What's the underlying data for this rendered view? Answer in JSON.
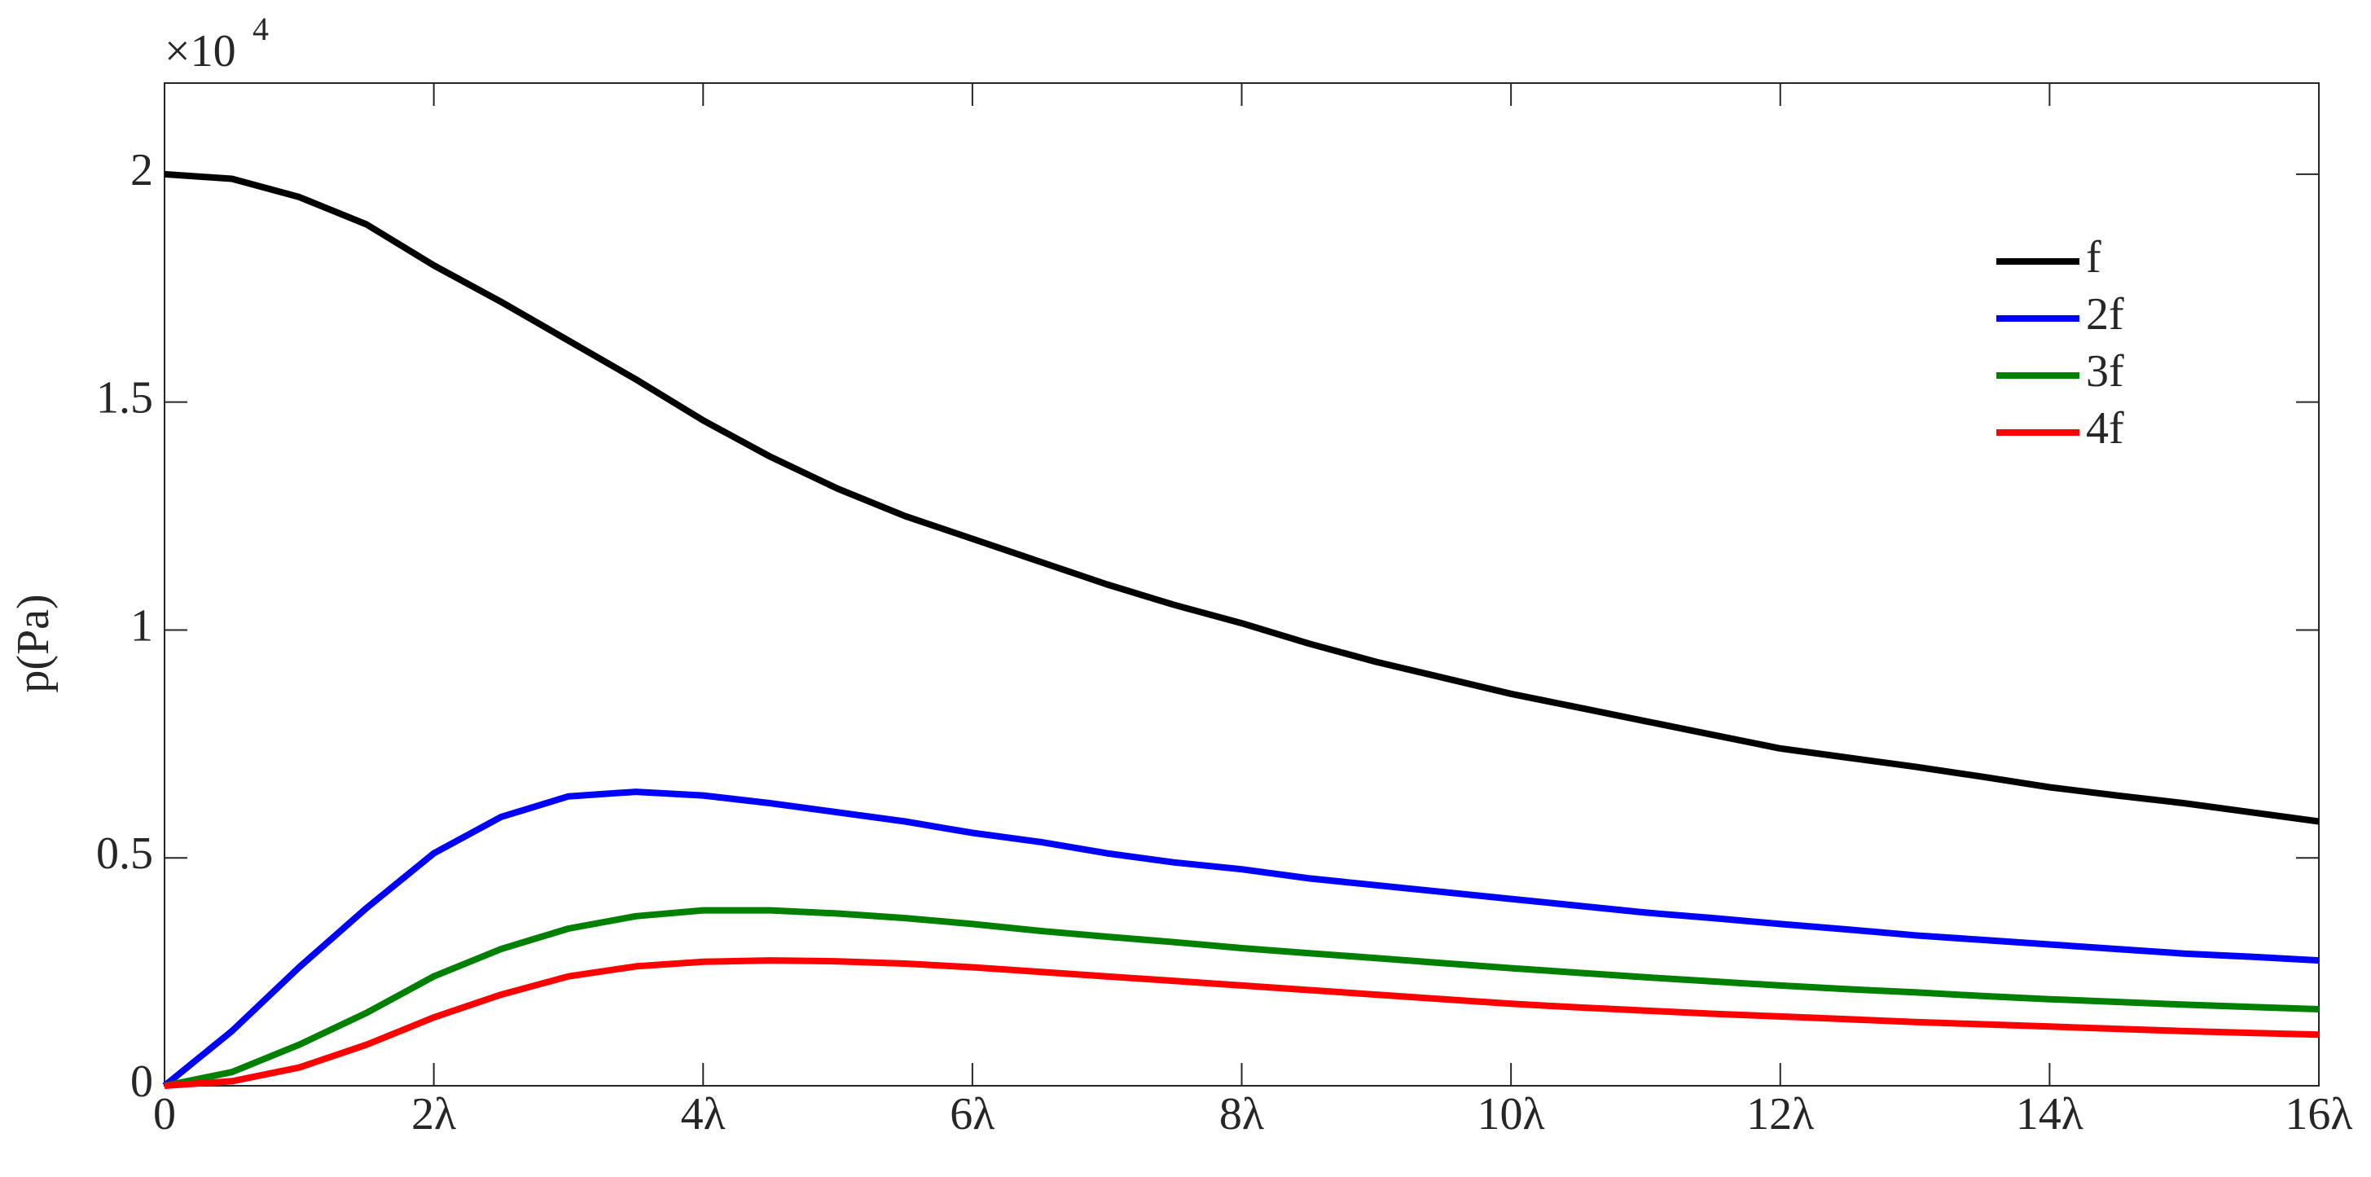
{
  "chart_data": {
    "type": "line",
    "y_label": "p(Pa)",
    "y_scale_base": "×10",
    "y_scale_exponent": "4",
    "x": [
      0,
      0.5,
      1,
      1.5,
      2,
      2.5,
      3,
      3.5,
      4,
      4.5,
      5,
      5.5,
      6,
      6.5,
      7,
      7.5,
      8,
      8.5,
      9,
      9.5,
      10,
      10.5,
      11,
      11.5,
      12,
      12.5,
      13,
      13.5,
      14,
      14.5,
      15,
      15.5,
      16
    ],
    "series": [
      {
        "name": "f",
        "color": "#000000",
        "values": [
          2.0,
          1.99,
          1.95,
          1.89,
          1.8,
          1.72,
          1.635,
          1.55,
          1.46,
          1.38,
          1.31,
          1.25,
          1.2,
          1.15,
          1.1,
          1.055,
          1.015,
          0.97,
          0.93,
          0.895,
          0.86,
          0.83,
          0.8,
          0.77,
          0.74,
          0.72,
          0.7,
          0.678,
          0.655,
          0.637,
          0.62,
          0.6,
          0.58
        ]
      },
      {
        "name": "2f",
        "color": "#0000ff",
        "values": [
          0,
          0.12,
          0.26,
          0.39,
          0.51,
          0.59,
          0.635,
          0.645,
          0.637,
          0.62,
          0.6,
          0.58,
          0.555,
          0.535,
          0.51,
          0.49,
          0.475,
          0.455,
          0.44,
          0.425,
          0.41,
          0.395,
          0.38,
          0.368,
          0.355,
          0.343,
          0.33,
          0.32,
          0.31,
          0.3,
          0.29,
          0.283,
          0.275
        ]
      },
      {
        "name": "3f",
        "color": "#008000",
        "values": [
          0,
          0.03,
          0.09,
          0.16,
          0.24,
          0.3,
          0.345,
          0.372,
          0.385,
          0.385,
          0.378,
          0.368,
          0.355,
          0.34,
          0.327,
          0.315,
          0.302,
          0.291,
          0.28,
          0.269,
          0.258,
          0.248,
          0.238,
          0.229,
          0.22,
          0.212,
          0.205,
          0.197,
          0.19,
          0.184,
          0.178,
          0.173,
          0.168
        ]
      },
      {
        "name": "4f",
        "color": "#ff0000",
        "values": [
          0,
          0.01,
          0.04,
          0.09,
          0.15,
          0.2,
          0.24,
          0.262,
          0.272,
          0.275,
          0.273,
          0.268,
          0.26,
          0.25,
          0.24,
          0.23,
          0.22,
          0.21,
          0.2,
          0.19,
          0.18,
          0.172,
          0.165,
          0.158,
          0.152,
          0.146,
          0.14,
          0.135,
          0.13,
          0.125,
          0.12,
          0.116,
          0.112
        ]
      }
    ],
    "xlim": [
      0,
      16
    ],
    "xticks": [
      0,
      {
        "value": 2,
        "label": "2λ"
      },
      {
        "value": 4,
        "label": "4λ"
      },
      {
        "value": 6,
        "label": "6λ"
      },
      {
        "value": 8,
        "label": "8λ"
      },
      {
        "value": 10,
        "label": "10λ"
      },
      {
        "value": 12,
        "label": "12λ"
      },
      {
        "value": 14,
        "label": "14λ"
      },
      {
        "value": 16,
        "label": "16λ"
      }
    ],
    "ylim": [
      0,
      2.2
    ],
    "yticks": [
      0,
      0.5,
      1,
      1.5,
      2
    ],
    "legend": "upper right",
    "grid": false
  }
}
